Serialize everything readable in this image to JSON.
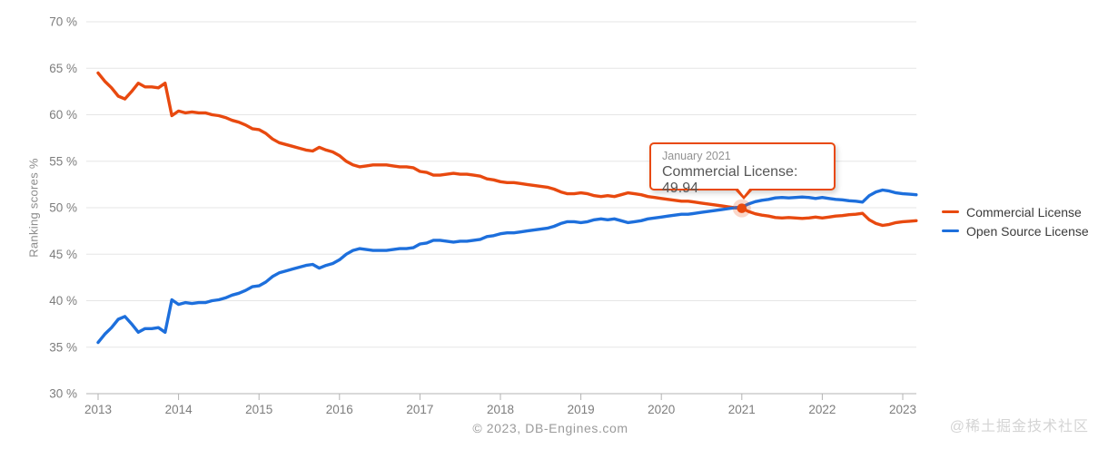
{
  "y_axis": {
    "label": "Ranking scores %",
    "ticks": [
      {
        "value": 70,
        "label": "70 %"
      },
      {
        "value": 65,
        "label": "65 %"
      },
      {
        "value": 60,
        "label": "60 %"
      },
      {
        "value": 55,
        "label": "55 %"
      },
      {
        "value": 50,
        "label": "50 %"
      },
      {
        "value": 45,
        "label": "45 %"
      },
      {
        "value": 40,
        "label": "40 %"
      },
      {
        "value": 35,
        "label": "35 %"
      },
      {
        "value": 30,
        "label": "30 %"
      }
    ]
  },
  "x_axis": {
    "ticks": [
      "2013",
      "2014",
      "2015",
      "2016",
      "2017",
      "2018",
      "2019",
      "2020",
      "2021",
      "2022",
      "2023"
    ]
  },
  "legend": {
    "items": [
      {
        "label": "Commercial License",
        "color": "#e8490f"
      },
      {
        "label": "Open Source License",
        "color": "#1d6fdc"
      }
    ]
  },
  "tooltip": {
    "title": "January 2021",
    "text": "Commercial License: 49.94"
  },
  "footer": {
    "copyright": "© 2023, DB-Engines.com"
  },
  "watermark": {
    "text": "@稀土掘金技术社区"
  },
  "chart_data": {
    "type": "line",
    "ylabel": "Ranking scores %",
    "ylim": [
      30,
      70
    ],
    "grid": true,
    "legend_position": "right",
    "x_start": "2013-01",
    "x_interval": "monthly",
    "x_tick_labels": [
      "2013",
      "2014",
      "2015",
      "2016",
      "2017",
      "2018",
      "2019",
      "2020",
      "2021",
      "2022",
      "2023"
    ],
    "y_ticks": [
      {
        "value": 70,
        "label": "70 %"
      },
      {
        "value": 65,
        "label": "65 %"
      },
      {
        "value": 60,
        "label": "60 %"
      },
      {
        "value": 55,
        "label": "55 %"
      },
      {
        "value": 50,
        "label": "50 %"
      },
      {
        "value": 45,
        "label": "45 %"
      },
      {
        "value": 40,
        "label": "40 %"
      },
      {
        "value": 35,
        "label": "35 %"
      },
      {
        "value": 30,
        "label": "30 %"
      }
    ],
    "series": [
      {
        "name": "Commercial License",
        "color": "#e8490f",
        "values": [
          64.5,
          63.6,
          62.9,
          62.0,
          61.7,
          62.5,
          63.4,
          63.0,
          63.0,
          62.9,
          63.4,
          59.9,
          60.4,
          60.2,
          60.3,
          60.2,
          60.2,
          60.0,
          59.9,
          59.7,
          59.4,
          59.2,
          58.9,
          58.5,
          58.4,
          58.0,
          57.4,
          57.0,
          56.8,
          56.6,
          56.4,
          56.2,
          56.1,
          56.5,
          56.2,
          56.0,
          55.6,
          55.0,
          54.6,
          54.4,
          54.5,
          54.6,
          54.6,
          54.6,
          54.5,
          54.4,
          54.4,
          54.3,
          53.9,
          53.8,
          53.5,
          53.5,
          53.6,
          53.7,
          53.6,
          53.6,
          53.5,
          53.4,
          53.1,
          53.0,
          52.8,
          52.7,
          52.7,
          52.6,
          52.5,
          52.4,
          52.3,
          52.2,
          52.0,
          51.7,
          51.5,
          51.5,
          51.6,
          51.5,
          51.3,
          51.2,
          51.3,
          51.2,
          51.4,
          51.6,
          51.5,
          51.4,
          51.2,
          51.1,
          51.0,
          50.9,
          50.8,
          50.7,
          50.7,
          50.6,
          50.5,
          50.4,
          50.3,
          50.2,
          50.1,
          50.0,
          49.94,
          49.6,
          49.35,
          49.2,
          49.1,
          48.95,
          48.9,
          48.95,
          48.9,
          48.85,
          48.9,
          49.0,
          48.9,
          49.0,
          49.1,
          49.15,
          49.25,
          49.3,
          49.4,
          48.7,
          48.3,
          48.1,
          48.2,
          48.4,
          48.5,
          48.55,
          48.6
        ]
      },
      {
        "name": "Open Source License",
        "color": "#1d6fdc",
        "values": [
          35.5,
          36.4,
          37.1,
          38.0,
          38.3,
          37.5,
          36.6,
          37.0,
          37.0,
          37.1,
          36.6,
          40.1,
          39.6,
          39.8,
          39.7,
          39.8,
          39.8,
          40.0,
          40.1,
          40.3,
          40.6,
          40.8,
          41.1,
          41.5,
          41.6,
          42.0,
          42.6,
          43.0,
          43.2,
          43.4,
          43.6,
          43.8,
          43.9,
          43.5,
          43.8,
          44.0,
          44.4,
          45.0,
          45.4,
          45.6,
          45.5,
          45.4,
          45.4,
          45.4,
          45.5,
          45.6,
          45.6,
          45.7,
          46.1,
          46.2,
          46.5,
          46.5,
          46.4,
          46.3,
          46.4,
          46.4,
          46.5,
          46.6,
          46.9,
          47.0,
          47.2,
          47.3,
          47.3,
          47.4,
          47.5,
          47.6,
          47.7,
          47.8,
          48.0,
          48.3,
          48.5,
          48.5,
          48.4,
          48.5,
          48.7,
          48.8,
          48.7,
          48.8,
          48.6,
          48.4,
          48.5,
          48.6,
          48.8,
          48.9,
          49.0,
          49.1,
          49.2,
          49.3,
          49.3,
          49.4,
          49.5,
          49.6,
          49.7,
          49.8,
          49.9,
          50.0,
          50.06,
          50.4,
          50.65,
          50.8,
          50.9,
          51.05,
          51.1,
          51.05,
          51.1,
          51.15,
          51.1,
          51.0,
          51.1,
          51.0,
          50.9,
          50.85,
          50.75,
          50.7,
          50.6,
          51.3,
          51.7,
          51.9,
          51.8,
          51.6,
          51.5,
          51.45,
          51.4
        ]
      }
    ],
    "highlight": {
      "series": "Commercial License",
      "month": "January 2021",
      "month_index": 96,
      "value": 49.94
    }
  }
}
